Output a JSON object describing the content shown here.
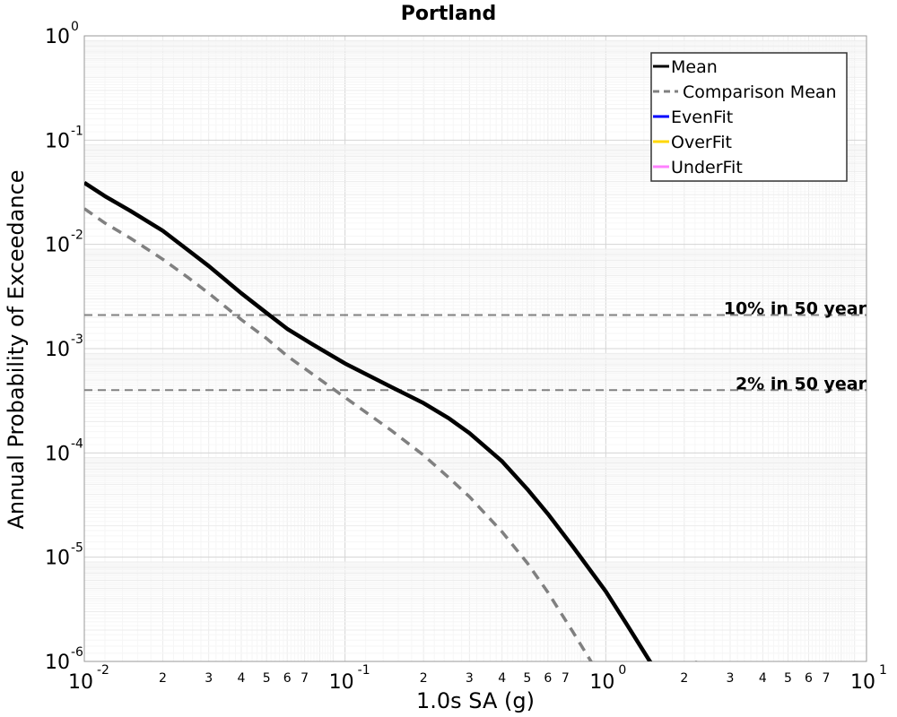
{
  "chart_data": {
    "type": "line",
    "title": "Portland",
    "xlabel": "1.0s SA (g)",
    "ylabel": "Annual Probability of Exceedance",
    "xscale": "log",
    "yscale": "log",
    "xlim": [
      0.01,
      10
    ],
    "ylim": [
      1e-06,
      1
    ],
    "grid": true,
    "legend_position": "top-right",
    "x_major_ticks": [
      {
        "base": "10",
        "exp": "-2",
        "value": 0.01
      },
      {
        "base": "10",
        "exp": "-1",
        "value": 0.1
      },
      {
        "base": "10",
        "exp": "0",
        "value": 1
      },
      {
        "base": "10",
        "exp": "1",
        "value": 10
      }
    ],
    "y_major_ticks": [
      {
        "base": "10",
        "exp": "0",
        "value": 1
      },
      {
        "base": "10",
        "exp": "-1",
        "value": 0.1
      },
      {
        "base": "10",
        "exp": "-2",
        "value": 0.01
      },
      {
        "base": "10",
        "exp": "-3",
        "value": 0.001
      },
      {
        "base": "10",
        "exp": "-4",
        "value": 0.0001
      },
      {
        "base": "10",
        "exp": "-5",
        "value": 1e-05
      },
      {
        "base": "10",
        "exp": "-6",
        "value": 1e-06
      }
    ],
    "x_minor_labels": [
      "2",
      "3",
      "4",
      "5",
      "6",
      "7"
    ],
    "series": [
      {
        "name": "Mean",
        "color": "#000000",
        "style": "solid",
        "x": [
          0.01,
          0.012,
          0.015,
          0.02,
          0.025,
          0.03,
          0.04,
          0.05,
          0.06,
          0.075,
          0.1,
          0.15,
          0.2,
          0.25,
          0.3,
          0.4,
          0.5,
          0.6,
          0.75,
          1.0,
          1.2,
          1.5,
          2.0,
          2.25
        ],
        "y": [
          0.039,
          0.029,
          0.021,
          0.0135,
          0.0088,
          0.0062,
          0.0034,
          0.0022,
          0.00155,
          0.0011,
          0.00072,
          0.00043,
          0.0003,
          0.000215,
          0.000155,
          8.3e-05,
          4.5e-05,
          2.6e-05,
          1.25e-05,
          4.7e-06,
          2.3e-06,
          9.4e-07,
          2.9e-07,
          1e-06
        ]
      },
      {
        "name": "Comparison Mean",
        "color": "#808080",
        "style": "dashed",
        "x": [
          0.01,
          0.012,
          0.015,
          0.02,
          0.025,
          0.03,
          0.04,
          0.05,
          0.06,
          0.075,
          0.1,
          0.15,
          0.2,
          0.25,
          0.3,
          0.4,
          0.5,
          0.6,
          0.75,
          1.0,
          1.2,
          1.5
        ],
        "y": [
          0.022,
          0.016,
          0.0115,
          0.0072,
          0.0048,
          0.0034,
          0.0019,
          0.00125,
          0.00085,
          0.00057,
          0.00034,
          0.000165,
          9.5e-05,
          5.8e-05,
          3.8e-05,
          1.75e-05,
          8.8e-06,
          4.6e-06,
          1.9e-06,
          5.9e-07,
          2.5e-07,
          1e-06
        ]
      },
      {
        "name": "EvenFit",
        "color": "#0000ff",
        "style": "solid",
        "x": [],
        "y": []
      },
      {
        "name": "OverFit",
        "color": "#ffd700",
        "style": "solid",
        "x": [],
        "y": []
      },
      {
        "name": "UnderFit",
        "color": "#ff80ff",
        "style": "solid",
        "x": [],
        "y": []
      }
    ],
    "reference_lines": [
      {
        "label": "10% in 50 year",
        "y": 0.0021
      },
      {
        "label": "2% in 50 year",
        "y": 0.0004
      }
    ]
  }
}
